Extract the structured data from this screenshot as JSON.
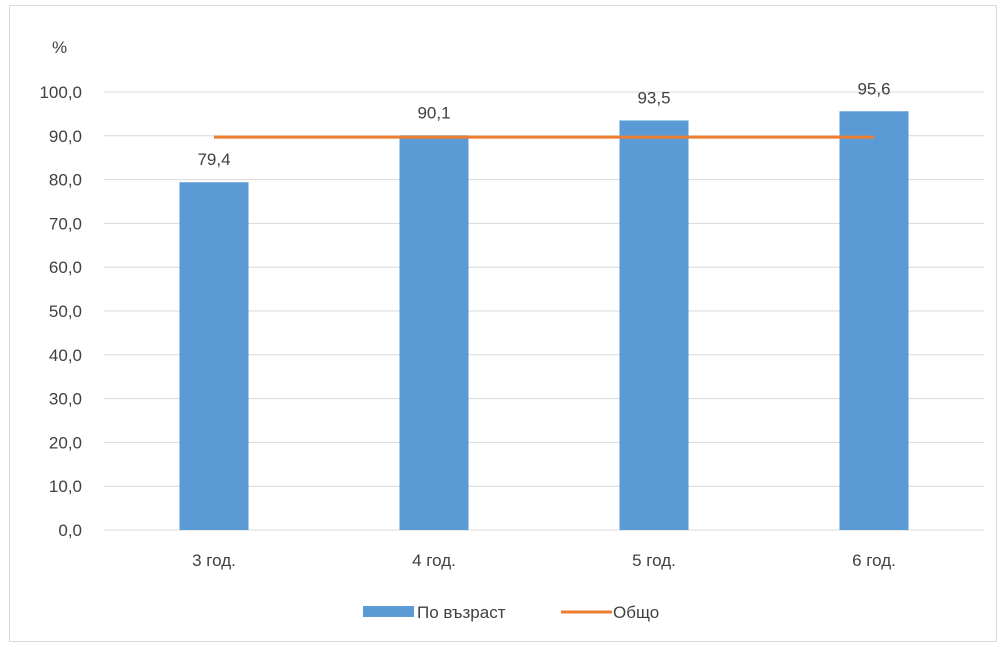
{
  "chart_data": {
    "type": "bar",
    "ylabel": "%",
    "ylim": [
      0,
      100
    ],
    "ytick_step": 10,
    "ytick_labels": [
      "0,0",
      "10,0",
      "20,0",
      "30,0",
      "40,0",
      "50,0",
      "60,0",
      "70,0",
      "80,0",
      "90,0",
      "100,0"
    ],
    "categories": [
      "3 год.",
      "4 год.",
      "5 год.",
      "6 год."
    ],
    "series": [
      {
        "name": "По възраст",
        "type": "bar",
        "values": [
          79.4,
          90.1,
          93.5,
          95.6
        ],
        "labels": [
          "79,4",
          "90,1",
          "93,5",
          "95,6"
        ],
        "color": "#5b9bd5"
      },
      {
        "name": "Общо",
        "type": "line",
        "values": [
          89.7,
          89.7,
          89.7,
          89.7
        ],
        "color": "#ed7d31"
      }
    ],
    "grid": true,
    "legend_position": "bottom",
    "gridline_color": "#d9d9d9"
  }
}
